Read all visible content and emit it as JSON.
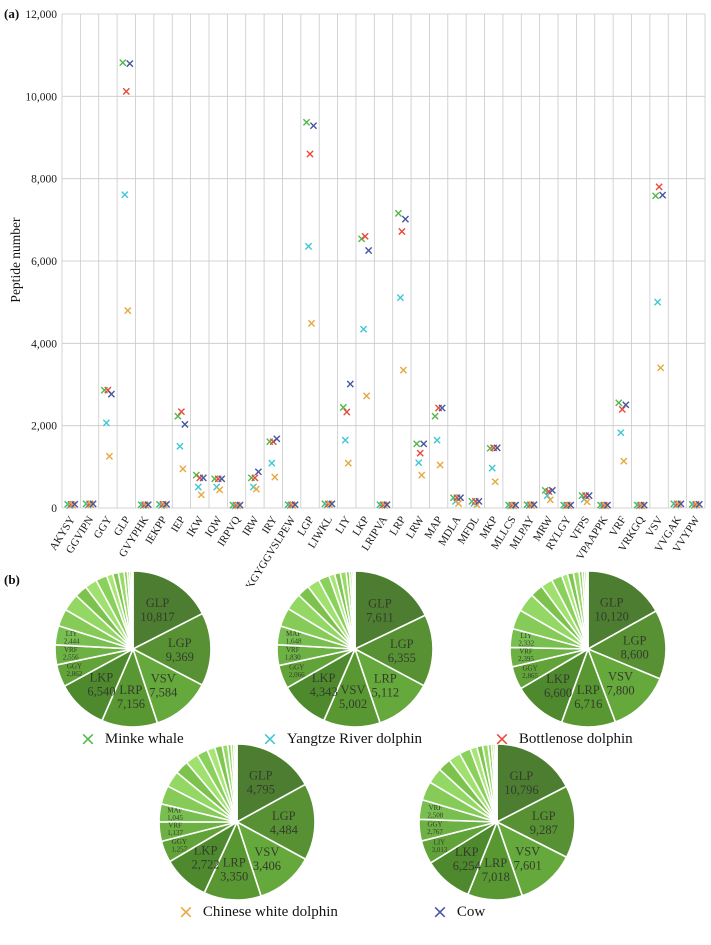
{
  "figure": {
    "panel_a_label": "(a)",
    "panel_b_label": "(b)"
  },
  "colors": {
    "grid": "#c9c9c9",
    "axis_text": "#1a1a1a",
    "pie_label_text": "#333d2c",
    "pie_slice_palette": [
      "#4d7d31",
      "#579134",
      "#65a83c",
      "#589732",
      "#4e892e",
      "#61a339",
      "#6db145",
      "#79be50"
    ],
    "pie_others_palette": [
      "#86cb58",
      "#93d764",
      "#7cc24d",
      "#9fe06f",
      "#8ad15c",
      "#a8e577",
      "#80c751",
      "#97da66",
      "#8ed05e",
      "#a4e273",
      "#84c954",
      "#9bdd6a"
    ]
  },
  "chart_data": [
    {
      "type": "scatter",
      "marker": "x",
      "ylabel": "Peptide number",
      "ylim": [
        0,
        12000
      ],
      "grid": true,
      "legend_position": "below",
      "ytick_labels": [
        "0",
        "2,000",
        "4,000",
        "6,000",
        "8,000",
        "10,000",
        "12,000"
      ],
      "ytick_values": [
        0,
        2000,
        4000,
        6000,
        8000,
        10000,
        12000
      ],
      "categories": [
        "AKYSY",
        "GGVIPN",
        "GGY",
        "GLP",
        "GVYPHK",
        "IEKPP",
        "IEP",
        "IKW",
        "IQW",
        "IRPVQ",
        "IRW",
        "IRY",
        "KGYGGVSLPEW",
        "LGP",
        "LIWKL",
        "LIY",
        "LKP",
        "LRIPVA",
        "LRP",
        "LRW",
        "MAP",
        "MDLA",
        "MFDL",
        "MKP",
        "MLLCS",
        "MLPAY",
        "MRW",
        "RYLGY",
        "VFPS",
        "VPAAPPK",
        "VRF",
        "VRKGQ",
        "VSV",
        "VVGAK",
        "VVYPW"
      ],
      "series": [
        {
          "name": "Minke whale",
          "color": "#52b848",
          "values": [
            90,
            100,
            2862,
            10817,
            80,
            90,
            2230,
            800,
            710,
            70,
            730,
            1610,
            80,
            9369,
            100,
            2444,
            6540,
            80,
            7156,
            1560,
            2230,
            250,
            160,
            1450,
            70,
            80,
            430,
            70,
            300,
            70,
            2556,
            70,
            7584,
            100,
            90
          ]
        },
        {
          "name": "Yangtze River dolphin",
          "color": "#3fc8d4",
          "values": [
            60,
            70,
            2066,
            7611,
            60,
            60,
            1500,
            510,
            510,
            50,
            510,
            1090,
            60,
            6355,
            70,
            1650,
            4343,
            60,
            5112,
            1100,
            1648,
            160,
            110,
            970,
            50,
            60,
            300,
            50,
            210,
            50,
            1830,
            50,
            5002,
            70,
            60
          ]
        },
        {
          "name": "Bottlenose dolphin",
          "color": "#e9493b",
          "values": [
            90,
            100,
            2865,
            10120,
            80,
            90,
            2340,
            730,
            710,
            70,
            730,
            1610,
            80,
            8600,
            100,
            2332,
            6600,
            80,
            6716,
            1330,
            2430,
            250,
            160,
            1460,
            70,
            80,
            400,
            70,
            300,
            70,
            2395,
            70,
            7800,
            100,
            90
          ]
        },
        {
          "name": "Chinese white dolphin",
          "color": "#e9a83f",
          "values": [
            70,
            80,
            1257,
            4795,
            60,
            70,
            950,
            320,
            440,
            50,
            460,
            750,
            60,
            4484,
            80,
            1090,
            2722,
            60,
            3350,
            800,
            1045,
            110,
            80,
            640,
            50,
            60,
            200,
            50,
            150,
            50,
            1137,
            50,
            3406,
            80,
            70
          ]
        },
        {
          "name": "Cow",
          "color": "#4656a2",
          "values": [
            90,
            100,
            2767,
            10796,
            80,
            90,
            2030,
            730,
            710,
            70,
            880,
            1680,
            80,
            9287,
            100,
            3013,
            6254,
            80,
            7018,
            1560,
            2430,
            250,
            160,
            1460,
            70,
            80,
            430,
            70,
            300,
            70,
            2508,
            70,
            7601,
            100,
            90
          ]
        }
      ]
    },
    {
      "type": "pie",
      "title": "Minke whale",
      "slices": [
        {
          "label": "GLP",
          "value": 10817,
          "display": "10,817",
          "size": "large"
        },
        {
          "label": "LGP",
          "value": 9369,
          "display": "9,369",
          "size": "large"
        },
        {
          "label": "VSV",
          "value": 7584,
          "display": "7,584",
          "size": "large"
        },
        {
          "label": "LRP",
          "value": 7156,
          "display": "7,156",
          "size": "large"
        },
        {
          "label": "LKP",
          "value": 6540,
          "display": "6,540",
          "size": "large"
        },
        {
          "label": "GGY",
          "value": 2862,
          "display": "2,862",
          "size": "small"
        },
        {
          "label": "VRF",
          "value": 2556,
          "display": "2,556",
          "size": "small"
        },
        {
          "label": "LIY",
          "value": 2444,
          "display": "2,444",
          "size": "small"
        }
      ],
      "others": [
        2230,
        2230,
        1610,
        1560,
        1450,
        800,
        730,
        730,
        430,
        300,
        250,
        160
      ]
    },
    {
      "type": "pie",
      "title": "Yangtze River dolphin",
      "slices": [
        {
          "label": "GLP",
          "value": 7611,
          "display": "7,611",
          "size": "large"
        },
        {
          "label": "LGP",
          "value": 6355,
          "display": "6,355",
          "size": "large"
        },
        {
          "label": "LRP",
          "value": 5112,
          "display": "5,112",
          "size": "large"
        },
        {
          "label": "VSV",
          "value": 5002,
          "display": "5,002",
          "size": "large"
        },
        {
          "label": "LKP",
          "value": 4343,
          "display": "4,343",
          "size": "large"
        },
        {
          "label": "GGY",
          "value": 2066,
          "display": "2,066",
          "size": "small"
        },
        {
          "label": "VRF",
          "value": 1830,
          "display": "1,830",
          "size": "small"
        },
        {
          "label": "MAP",
          "value": 1648,
          "display": "1,648",
          "size": "small"
        }
      ],
      "others": [
        1650,
        1500,
        1100,
        1090,
        970,
        510,
        510,
        510,
        300,
        210,
        160,
        110
      ]
    },
    {
      "type": "pie",
      "title": "Bottlenose dolphin",
      "slices": [
        {
          "label": "GLP",
          "value": 10120,
          "display": "10,120",
          "size": "large"
        },
        {
          "label": "LGP",
          "value": 8600,
          "display": "8,600",
          "size": "large"
        },
        {
          "label": "VSV",
          "value": 7800,
          "display": "7,800",
          "size": "large"
        },
        {
          "label": "LRP",
          "value": 6716,
          "display": "6,716",
          "size": "large"
        },
        {
          "label": "LKP",
          "value": 6600,
          "display": "6,600",
          "size": "large"
        },
        {
          "label": "GGY",
          "value": 2865,
          "display": "2,865",
          "size": "small"
        },
        {
          "label": "VRF",
          "value": 2395,
          "display": "2,395",
          "size": "small"
        },
        {
          "label": "LIY",
          "value": 2332,
          "display": "2,332",
          "size": "small"
        }
      ],
      "others": [
        2430,
        2340,
        1610,
        1460,
        1330,
        730,
        730,
        710,
        400,
        300,
        250,
        160
      ]
    },
    {
      "type": "pie",
      "title": "Chinese white dolphin",
      "slices": [
        {
          "label": "GLP",
          "value": 4795,
          "display": "4,795",
          "size": "large"
        },
        {
          "label": "LGP",
          "value": 4484,
          "display": "4,484",
          "size": "large"
        },
        {
          "label": "VSV",
          "value": 3406,
          "display": "3,406",
          "size": "large"
        },
        {
          "label": "LRP",
          "value": 3350,
          "display": "3,350",
          "size": "large"
        },
        {
          "label": "LKP",
          "value": 2722,
          "display": "2,722",
          "size": "large"
        },
        {
          "label": "GGY",
          "value": 1257,
          "display": "1,257",
          "size": "small"
        },
        {
          "label": "VRF",
          "value": 1137,
          "display": "1,137",
          "size": "small"
        },
        {
          "label": "MAP",
          "value": 1045,
          "display": "1,045",
          "size": "small"
        }
      ],
      "others": [
        1090,
        950,
        800,
        750,
        640,
        460,
        440,
        320,
        200,
        150,
        110,
        80
      ]
    },
    {
      "type": "pie",
      "title": "Cow",
      "slices": [
        {
          "label": "GLP",
          "value": 10796,
          "display": "10,796",
          "size": "large"
        },
        {
          "label": "LGP",
          "value": 9287,
          "display": "9,287",
          "size": "large"
        },
        {
          "label": "VSV",
          "value": 7601,
          "display": "7,601",
          "size": "large"
        },
        {
          "label": "LRP",
          "value": 7018,
          "display": "7,018",
          "size": "large"
        },
        {
          "label": "LKP",
          "value": 6254,
          "display": "6,254",
          "size": "large"
        },
        {
          "label": "LIY",
          "value": 3013,
          "display": "3,013",
          "size": "small"
        },
        {
          "label": "GGY",
          "value": 2767,
          "display": "2,767",
          "size": "small"
        },
        {
          "label": "VRF",
          "value": 2508,
          "display": "2,508",
          "size": "small"
        }
      ],
      "others": [
        2430,
        2030,
        1680,
        1560,
        1460,
        880,
        730,
        710,
        430,
        300,
        250,
        160
      ]
    }
  ]
}
